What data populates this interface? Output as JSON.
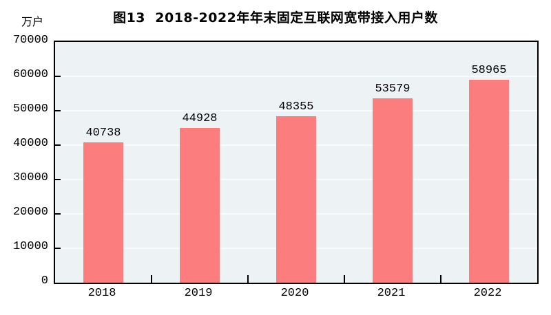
{
  "figure": {
    "title": "图13  2018-2022年年末固定互联网宽带接入用户数",
    "unit_label": "万户"
  },
  "chart_data": {
    "type": "bar",
    "title": "图13  2018-2022年年末固定互联网宽带接入用户数",
    "ylabel_unit": "万户",
    "categories": [
      "2018",
      "2019",
      "2020",
      "2021",
      "2022"
    ],
    "values": [
      40738,
      44928,
      48355,
      53579,
      58965
    ],
    "value_labels": [
      "40738",
      "44928",
      "48355",
      "53579",
      "58965"
    ],
    "ylim": [
      0,
      70000
    ],
    "yticks": [
      0,
      10000,
      20000,
      30000,
      40000,
      50000,
      60000,
      70000
    ],
    "grid": true,
    "legend": false,
    "colors": {
      "bar": "#FB7D7D",
      "plot_background": "#EDF3F5",
      "gridline": "#F8FBFC",
      "axis": "#000000",
      "text": "#000000"
    }
  }
}
